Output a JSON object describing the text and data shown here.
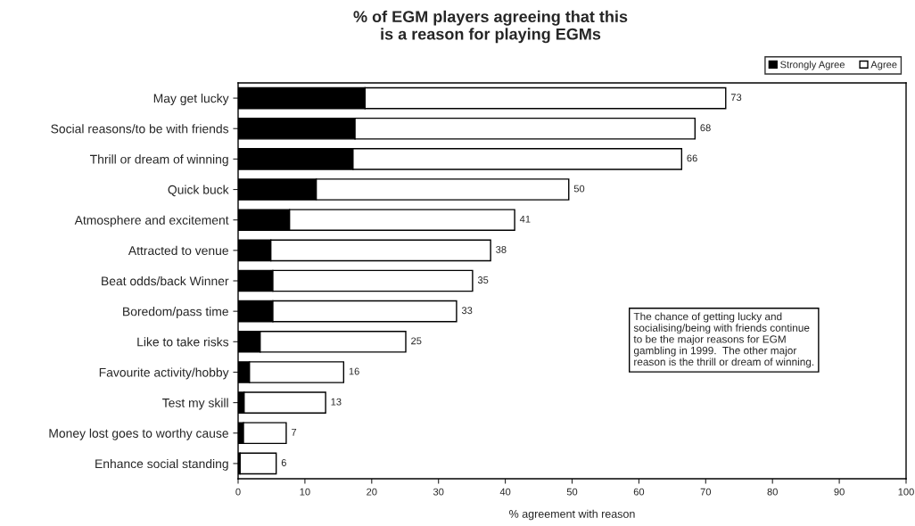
{
  "chart_data": {
    "type": "bar",
    "orientation": "horizontal",
    "stacked": true,
    "title": "% of EGM players agreeing that this\nis a reason for playing EGMs",
    "xlabel": "% agreement with reason",
    "categories": [
      "May get lucky",
      "Social reasons/to be with friends",
      "Thrill or dream of winning",
      "Quick buck",
      "Atmosphere and excitement",
      "Attracted to venue",
      "Beat odds/back Winner",
      "Boredom/pass time",
      "Like to take risks",
      "Favourite activity/hobby",
      "Test my skill",
      "Money lost goes to worthy cause",
      "Enhance social standing"
    ],
    "series": [
      {
        "name": "Strongly Agree",
        "color": "#000000",
        "values": [
          19.0,
          17.5,
          17.2,
          11.7,
          7.7,
          4.9,
          5.2,
          5.2,
          3.3,
          1.7,
          0.9,
          0.8,
          0.3
        ]
      },
      {
        "name": "Agree",
        "color": "#ffffff",
        "values": [
          54.0,
          50.9,
          49.2,
          37.8,
          33.7,
          32.9,
          29.9,
          27.5,
          21.8,
          14.1,
          12.2,
          6.4,
          5.4
        ]
      }
    ],
    "totals": [
      "73",
      "68",
      "66",
      "50",
      "41",
      "38",
      "35",
      "33",
      "25",
      "16",
      "13",
      "7",
      "6"
    ],
    "xlim": [
      0,
      100
    ],
    "xticks": [
      0,
      10,
      20,
      30,
      40,
      50,
      60,
      70,
      80,
      90,
      100
    ],
    "grid": false,
    "legend": "top right",
    "annotations": [
      "The chance of getting lucky and\nsocialising/being with friends continue\nto be the major reasons for EGM\ngambling in 1999.  The other major\nreason is the thrill or dream of winning."
    ]
  }
}
